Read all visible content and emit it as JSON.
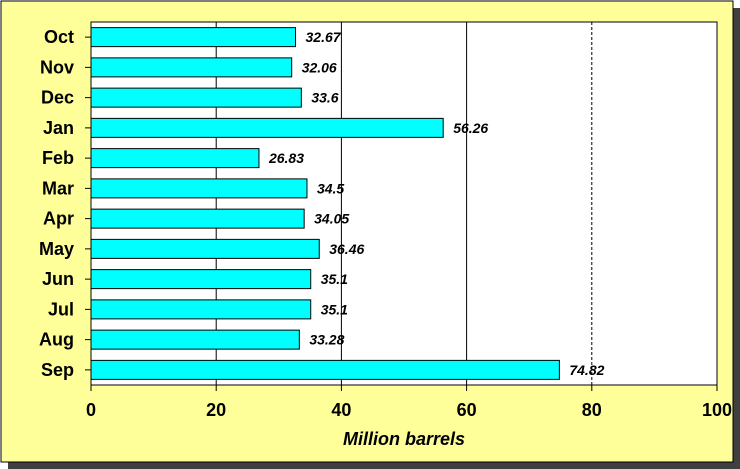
{
  "chart_data": {
    "type": "bar",
    "orientation": "horizontal",
    "categories": [
      "Oct",
      "Nov",
      "Dec",
      "Jan",
      "Feb",
      "Mar",
      "Apr",
      "May",
      "Jun",
      "Jul",
      "Aug",
      "Sep"
    ],
    "values": [
      32.67,
      32.06,
      33.6,
      56.26,
      26.83,
      34.5,
      34.05,
      36.46,
      35.1,
      35.1,
      33.28,
      74.82
    ],
    "value_labels": [
      "32.67",
      "32.06",
      "33.6",
      "56.26",
      "26.83",
      "34.5",
      "34.05",
      "36.46",
      "35.1",
      "35.1",
      "33.28",
      "74.82"
    ],
    "xlabel": "Million barrels",
    "xlim": [
      0,
      100
    ],
    "xticks": [
      "0",
      "20",
      "40",
      "60",
      "80",
      "100"
    ],
    "grid": "vertical",
    "legend": "none"
  },
  "colors": {
    "frame_background": "#FFFF99",
    "plot_background": "#FFFFFF",
    "bar_fill": "#00FFFF",
    "bar_stroke": "#000000",
    "gridline": "#000000"
  }
}
